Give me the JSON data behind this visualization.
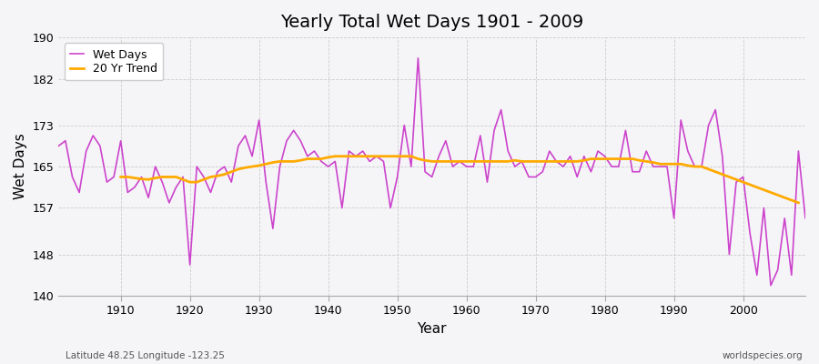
{
  "title": "Yearly Total Wet Days 1901 - 2009",
  "xlabel": "Year",
  "ylabel": "Wet Days",
  "footer_left": "Latitude 48.25 Longitude -123.25",
  "footer_right": "worldspecies.org",
  "ylim": [
    140,
    190
  ],
  "yticks": [
    140,
    148,
    157,
    165,
    173,
    182,
    190
  ],
  "wet_days_color": "#cc44cc",
  "trend_color": "#ffaa00",
  "bg_color": "#f5f5f8",
  "years": [
    1901,
    1902,
    1903,
    1904,
    1905,
    1906,
    1907,
    1908,
    1909,
    1910,
    1911,
    1912,
    1913,
    1914,
    1915,
    1916,
    1917,
    1918,
    1919,
    1920,
    1921,
    1922,
    1923,
    1924,
    1925,
    1926,
    1927,
    1928,
    1929,
    1930,
    1931,
    1932,
    1933,
    1934,
    1935,
    1936,
    1937,
    1938,
    1939,
    1940,
    1941,
    1942,
    1943,
    1944,
    1945,
    1946,
    1947,
    1948,
    1949,
    1950,
    1951,
    1952,
    1953,
    1954,
    1955,
    1956,
    1957,
    1958,
    1959,
    1960,
    1961,
    1962,
    1963,
    1964,
    1965,
    1966,
    1967,
    1968,
    1969,
    1970,
    1971,
    1972,
    1973,
    1974,
    1975,
    1976,
    1977,
    1978,
    1979,
    1980,
    1981,
    1982,
    1983,
    1984,
    1985,
    1986,
    1987,
    1988,
    1989,
    1990,
    1991,
    1992,
    1993,
    1994,
    1995,
    1996,
    1997,
    1998,
    1999,
    2000,
    2001,
    2002,
    2003,
    2004,
    2005,
    2006,
    2007,
    2008,
    2009
  ],
  "wet_days": [
    169,
    170,
    163,
    160,
    168,
    171,
    169,
    162,
    163,
    170,
    160,
    161,
    163,
    159,
    165,
    162,
    158,
    161,
    163,
    146,
    165,
    163,
    160,
    164,
    165,
    162,
    169,
    171,
    167,
    174,
    162,
    153,
    165,
    170,
    172,
    170,
    167,
    168,
    166,
    165,
    166,
    157,
    168,
    167,
    168,
    166,
    167,
    166,
    157,
    163,
    173,
    165,
    186,
    164,
    163,
    167,
    170,
    165,
    166,
    165,
    165,
    171,
    162,
    172,
    176,
    168,
    165,
    166,
    163,
    163,
    164,
    168,
    166,
    165,
    167,
    163,
    167,
    164,
    168,
    167,
    165,
    165,
    172,
    164,
    164,
    168,
    165,
    165,
    165,
    155,
    174,
    168,
    165,
    165,
    173,
    176,
    167,
    148,
    162,
    163,
    152,
    144,
    157,
    142,
    145,
    155,
    144,
    168,
    155
  ],
  "trend_years": [
    1910,
    1911,
    1912,
    1913,
    1914,
    1915,
    1916,
    1917,
    1918,
    1919,
    1920,
    1921,
    1922,
    1923,
    1924,
    1925,
    1926,
    1927,
    1928,
    1929,
    1930,
    1931,
    1932,
    1933,
    1934,
    1935,
    1936,
    1937,
    1938,
    1939,
    1940,
    1941,
    1942,
    1943,
    1944,
    1945,
    1946,
    1947,
    1948,
    1949,
    1950,
    1951,
    1952,
    1953,
    1954,
    1955,
    1956,
    1957,
    1958,
    1959,
    1960,
    1961,
    1962,
    1963,
    1964,
    1965,
    1966,
    1967,
    1968,
    1969,
    1970,
    1971,
    1972,
    1973,
    1974,
    1975,
    1976,
    1977,
    1978,
    1979,
    1980,
    1981,
    1982,
    1983,
    1984,
    1985,
    1986,
    1987,
    1988,
    1989,
    1990,
    1991,
    1992,
    1993,
    1994,
    1995,
    1996,
    1997,
    1998,
    1999,
    2000,
    2001,
    2002,
    2003,
    2004,
    2005,
    2006,
    2007,
    2008
  ],
  "trend_vals": [
    163.0,
    163.0,
    162.8,
    162.6,
    162.5,
    162.8,
    163.0,
    163.0,
    163.0,
    162.5,
    162.0,
    162.0,
    162.5,
    163.0,
    163.2,
    163.5,
    164.0,
    164.5,
    164.8,
    165.0,
    165.2,
    165.5,
    165.8,
    166.0,
    166.0,
    166.0,
    166.2,
    166.5,
    166.5,
    166.5,
    166.8,
    167.0,
    167.0,
    167.0,
    167.0,
    167.0,
    167.0,
    167.0,
    167.0,
    167.0,
    167.0,
    167.0,
    167.0,
    166.5,
    166.2,
    166.0,
    166.0,
    166.0,
    166.0,
    166.0,
    166.0,
    166.0,
    166.0,
    166.0,
    166.0,
    166.0,
    166.0,
    166.2,
    166.0,
    166.0,
    166.0,
    166.0,
    166.0,
    166.0,
    166.0,
    166.0,
    166.0,
    166.2,
    166.5,
    166.5,
    166.5,
    166.5,
    166.5,
    166.5,
    166.5,
    166.2,
    166.0,
    165.8,
    165.5,
    165.5,
    165.5,
    165.5,
    165.2,
    165.0,
    165.0,
    164.5,
    164.0,
    163.5,
    163.0,
    162.5,
    162.0,
    161.5,
    161.0,
    160.5,
    160.0,
    159.5,
    159.0,
    158.5,
    158.0
  ]
}
